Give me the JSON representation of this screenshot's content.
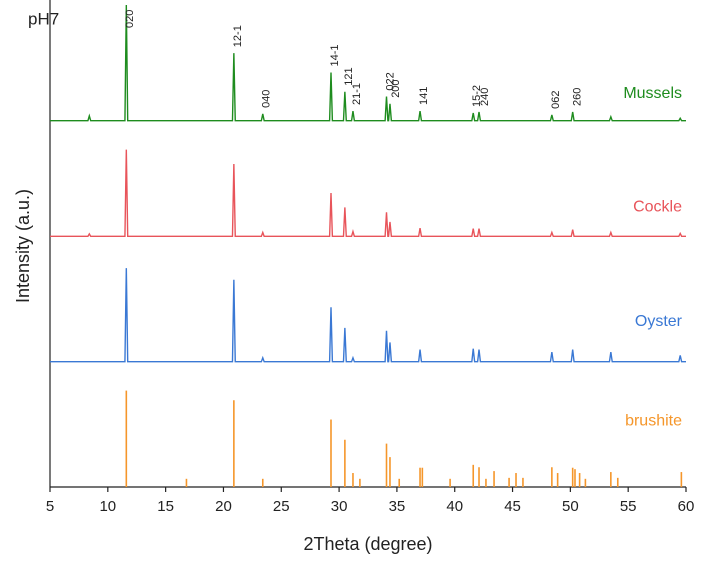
{
  "chart_data": {
    "type": "line",
    "subtitle": "pH7",
    "x_label": "2Theta (degree)",
    "y_label": "Intensity (a.u.)",
    "xlim": [
      5,
      60
    ],
    "xticks": [
      5,
      10,
      15,
      20,
      25,
      30,
      35,
      40,
      45,
      50,
      55,
      60
    ],
    "ylim": [
      0,
      100
    ],
    "x": [
      5,
      8.28,
      8.4,
      8.52,
      11.48,
      11.6,
      11.72,
      20.78,
      20.9,
      21.02,
      23.28,
      23.4,
      23.52,
      29.18,
      29.3,
      29.42,
      30.38,
      30.5,
      30.62,
      31.08,
      31.2,
      31.32,
      33.98,
      34.1,
      34.22,
      34.28,
      34.4,
      34.52,
      36.88,
      37.0,
      37.12,
      41.48,
      41.6,
      41.72,
      41.98,
      42.1,
      42.22,
      48.28,
      48.4,
      48.52,
      50.08,
      50.2,
      50.32,
      53.38,
      53.5,
      53.62,
      59.38,
      59.5,
      59.62,
      60
    ],
    "series": [
      {
        "name": "Mussels",
        "color": "#1e8c1e",
        "values": [
          76,
          76,
          77,
          76,
          76,
          100,
          76,
          76,
          90,
          76,
          76,
          77.4,
          76,
          76,
          86,
          76,
          76,
          82,
          76,
          76,
          78,
          76,
          76,
          81,
          76,
          76,
          79.5,
          76,
          76,
          78,
          76,
          76,
          77.6,
          76,
          76,
          77.8,
          76,
          76,
          77.2,
          76,
          76,
          77.8,
          76,
          76,
          76.8,
          76,
          76,
          76.5,
          76,
          76
        ]
      },
      {
        "name": "Cockle",
        "color": "#e8545a",
        "values": [
          52,
          52,
          52.5,
          52,
          52,
          70,
          52,
          52,
          67,
          52,
          52,
          52.8,
          52,
          52,
          61,
          52,
          52,
          58,
          52,
          52,
          53,
          52,
          52,
          57,
          52,
          52,
          55,
          52,
          52,
          53.7,
          52,
          52,
          53.6,
          52,
          52,
          53.6,
          52,
          52,
          52.8,
          52,
          52,
          53.4,
          52,
          52,
          52.8,
          52,
          52,
          52.6,
          52,
          52
        ]
      },
      {
        "name": "Oyster",
        "color": "#3a78d4",
        "values": [
          26,
          26,
          26,
          26,
          26,
          45.4,
          26,
          26,
          43,
          26,
          26,
          26.8,
          26,
          26,
          37.3,
          26,
          26,
          33,
          26,
          26,
          26.8,
          26,
          26,
          32.4,
          26,
          26,
          30,
          26,
          26,
          28.5,
          26,
          26,
          28.7,
          26,
          26,
          28.5,
          26,
          26,
          28,
          26,
          26,
          28.5,
          26,
          26,
          28,
          26,
          26,
          27.3,
          26,
          26
        ]
      },
      {
        "name": "brushite",
        "color": "#f5962a",
        "style": "sticks",
        "x": [
          11.6,
          16.8,
          20.9,
          23.4,
          29.3,
          30.5,
          31.2,
          31.8,
          34.1,
          34.4,
          35.2,
          37.0,
          37.2,
          39.6,
          41.6,
          42.1,
          42.7,
          43.4,
          44.7,
          45.3,
          45.9,
          48.4,
          48.9,
          50.2,
          50.4,
          50.8,
          51.3,
          53.5,
          54.1,
          59.6
        ],
        "values": [
          20,
          1.7,
          18,
          1.7,
          14,
          9.8,
          2.9,
          1.7,
          9,
          6.2,
          1.7,
          4,
          4,
          1.7,
          4.6,
          4.1,
          1.7,
          3.3,
          1.9,
          2.9,
          1.9,
          4.1,
          2.9,
          4,
          3.7,
          2.9,
          1.7,
          3.1,
          1.9,
          3.1
        ]
      }
    ],
    "annotations": [
      {
        "text": "020",
        "x": 11.6
      },
      {
        "text": "12-1",
        "x": 20.9
      },
      {
        "text": "040",
        "x": 23.4
      },
      {
        "text": "14-1",
        "x": 29.3
      },
      {
        "text": "121",
        "x": 30.5
      },
      {
        "text": "21-1",
        "x": 31.2
      },
      {
        "text": "022",
        "x": 34.1
      },
      {
        "text": "200",
        "x": 34.6
      },
      {
        "text": "141",
        "x": 37.0
      },
      {
        "text": "15-2",
        "x": 41.6
      },
      {
        "text": "240",
        "x": 42.3
      },
      {
        "text": "062",
        "x": 48.4
      },
      {
        "text": "260",
        "x": 50.3
      }
    ]
  }
}
